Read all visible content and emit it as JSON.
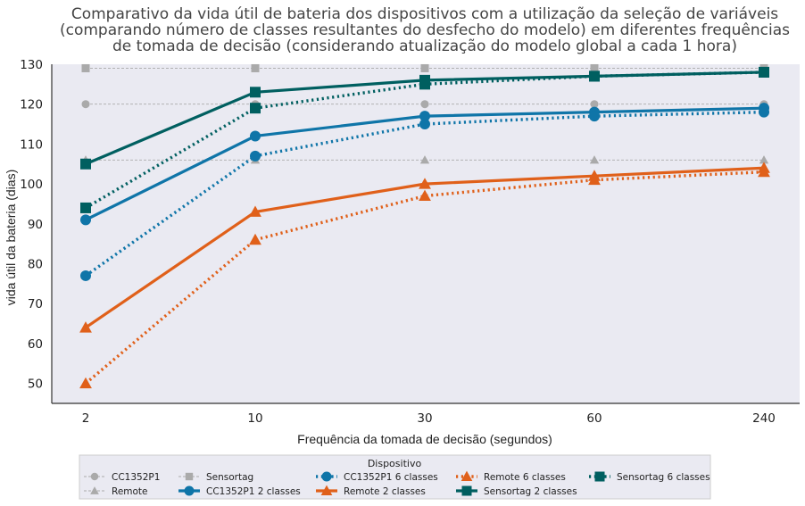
{
  "chart_data": {
    "type": "line",
    "title_lines": [
      "Comparativo da vida útil de bateria dos dispositivos com a utilização da seleção de variáveis",
      "(comparando número de classes resultantes do desfecho do modelo) em diferentes frequências",
      "de tomada de decisão (considerando atualização do modelo global a cada 1 hora)"
    ],
    "xlabel": "Frequência da tomada de decisão (segundos)",
    "ylabel": "vida útil da bateria (dias)",
    "categories": [
      "2",
      "10",
      "30",
      "60",
      "240"
    ],
    "ylim": [
      45,
      130
    ],
    "yticks": [
      50,
      60,
      70,
      80,
      90,
      100,
      110,
      120,
      130
    ],
    "grid": false,
    "legend_title": "Dispositivo",
    "legend_position": "bottom-center",
    "series": [
      {
        "name": "CC1352P1",
        "values": [
          120,
          120,
          120,
          120,
          120
        ],
        "color": "#aaaaaa",
        "marker": "circle",
        "line": "dashed-thin"
      },
      {
        "name": "Remote",
        "values": [
          106,
          106,
          106,
          106,
          106
        ],
        "color": "#aaaaaa",
        "marker": "triangle",
        "line": "dashed-thin"
      },
      {
        "name": "Sensortag",
        "values": [
          129,
          129,
          129,
          129,
          129
        ],
        "color": "#aaaaaa",
        "marker": "square",
        "line": "dashed-thin"
      },
      {
        "name": "CC1352P1 2 classes",
        "values": [
          91,
          112,
          117,
          118,
          119
        ],
        "color": "#0f75a8",
        "marker": "circle",
        "line": "solid"
      },
      {
        "name": "CC1352P1 6 classes",
        "values": [
          77,
          107,
          115,
          117,
          118
        ],
        "color": "#0f75a8",
        "marker": "circle",
        "line": "dotted"
      },
      {
        "name": "Remote 2 classes",
        "values": [
          64,
          93,
          100,
          102,
          104
        ],
        "color": "#e0601a",
        "marker": "triangle",
        "line": "solid"
      },
      {
        "name": "Remote 6 classes",
        "values": [
          50,
          86,
          97,
          101,
          103
        ],
        "color": "#e0601a",
        "marker": "triangle",
        "line": "dotted"
      },
      {
        "name": "Sensortag 2 classes",
        "values": [
          105,
          123,
          126,
          127,
          128
        ],
        "color": "#005f60",
        "marker": "square",
        "line": "solid"
      },
      {
        "name": "Sensortag 6 classes",
        "values": [
          94,
          119,
          125,
          127,
          128
        ],
        "color": "#005f60",
        "marker": "square",
        "line": "dotted"
      }
    ]
  },
  "colors": {
    "plot_background": "#eaeaf2",
    "axis": "#333333"
  }
}
